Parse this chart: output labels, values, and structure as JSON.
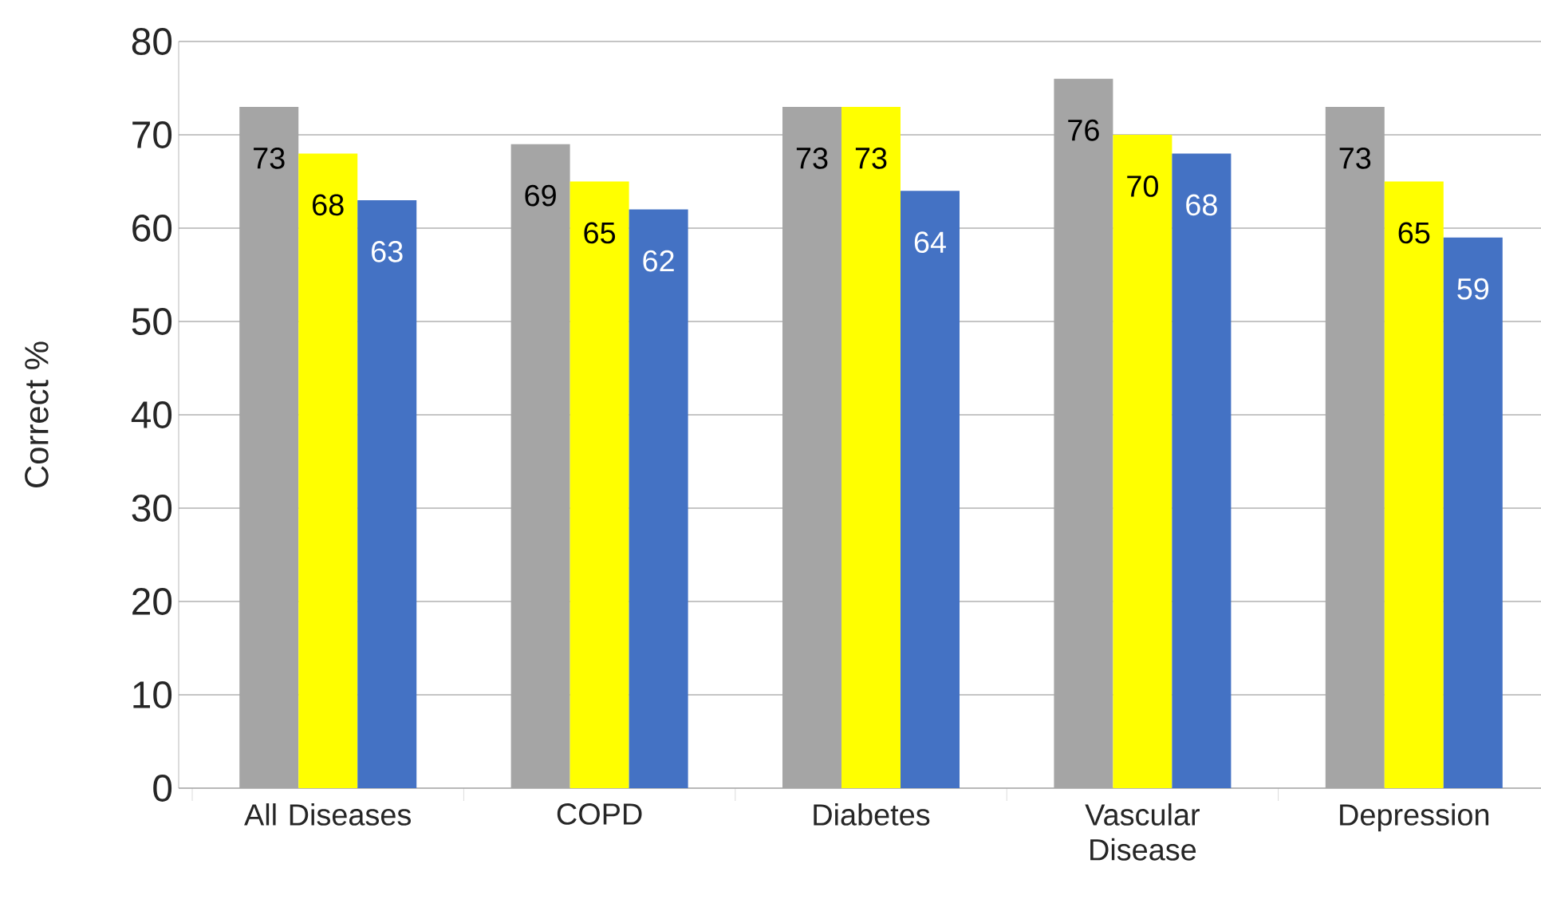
{
  "chart_data": {
    "type": "bar",
    "ylabel": "Correct %",
    "categories": [
      "All Diseases",
      "COPD",
      "Diabetes",
      "Vascular Disease",
      "Depression"
    ],
    "series": [
      {
        "color": "#a5a5a5",
        "values": [
          73,
          69,
          73,
          76,
          73
        ]
      },
      {
        "color": "#ffff00",
        "values": [
          68,
          65,
          73,
          70,
          65
        ]
      },
      {
        "color": "#4472c4",
        "values": [
          63,
          62,
          64,
          68,
          59
        ]
      }
    ],
    "ylim": [
      0,
      80
    ],
    "yticks": [
      0,
      10,
      20,
      30,
      40,
      50,
      60,
      70,
      80
    ],
    "grid": "y",
    "data_labels": true
  }
}
